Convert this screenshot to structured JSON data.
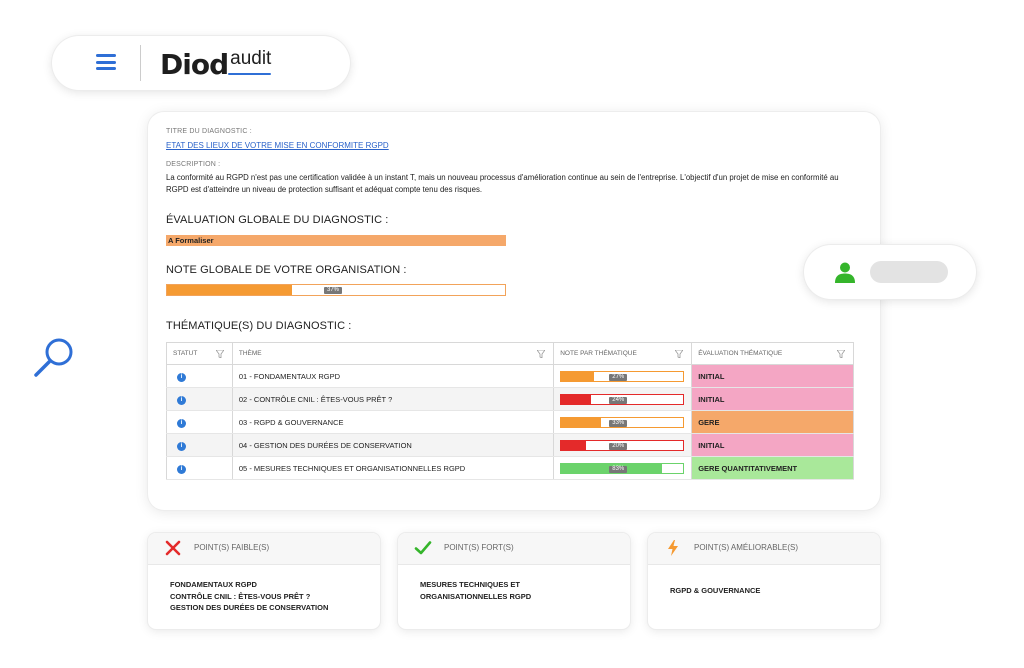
{
  "brand": {
    "name_main": "Diod",
    "name_sub": "audit"
  },
  "diagnostic": {
    "title_label": "TITRE DU DIAGNOSTIC :",
    "title": "ETAT DES LIEUX DE VOTRE MISE EN CONFORMITE RGPD",
    "description_label": "DESCRIPTION :",
    "description": "La conformité au RGPD n'est pas une certification validée à un instant T, mais un nouveau processus d'amélioration continue au sein de l'entreprise. L'objectif d'un projet de mise en conformité au RGPD est d'atteindre un niveau de protection suffisant et adéquat compte tenu des risques.",
    "global_eval_title": "ÉVALUATION GLOBALE DU DIAGNOSTIC :",
    "global_eval_value": "A Formaliser",
    "global_eval_color": "#f5a86a",
    "global_note_title": "NOTE GLOBALE DE VOTRE ORGANISATION :",
    "global_note_percent": 37,
    "global_note_label": "37%",
    "themes_title": "THÉMATIQUE(S) DU DIAGNOSTIC :"
  },
  "table": {
    "headers": [
      "STATUT",
      "THÈME",
      "NOTE PAR THÉMATIQUE",
      "ÉVALUATION THÉMATIQUE"
    ],
    "rows": [
      {
        "status_icon": "info-icon",
        "theme": "01 - FONDAMENTAUX RGPD",
        "percent": 27,
        "percent_label": "27%",
        "bar_color": "#f59a32",
        "evaluation": "INITIAL",
        "eval_color": "#f4a6c4"
      },
      {
        "status_icon": "info-icon",
        "theme": "02 - CONTRÔLE CNIL : ÊTES-VOUS PRÊT ?",
        "percent": 24,
        "percent_label": "24%",
        "bar_color": "#e42a2a",
        "evaluation": "INITIAL",
        "eval_color": "#f4a6c4"
      },
      {
        "status_icon": "info-icon",
        "theme": "03 - RGPD & GOUVERNANCE",
        "percent": 33,
        "percent_label": "33%",
        "bar_color": "#f59a32",
        "evaluation": "GERE",
        "eval_color": "#f5a86a"
      },
      {
        "status_icon": "info-icon",
        "theme": "04 - GESTION DES DURÉES DE CONSERVATION",
        "percent": 20,
        "percent_label": "20%",
        "bar_color": "#e42a2a",
        "evaluation": "INITIAL",
        "eval_color": "#f4a6c4"
      },
      {
        "status_icon": "info-icon",
        "theme": "05 - MESURES TECHNIQUES ET ORGANISATIONNELLES RGPD",
        "percent": 83,
        "percent_label": "83%",
        "bar_color": "#6bd36b",
        "evaluation": "GERE QUANTITATIVEMENT",
        "eval_color": "#a9e89a"
      }
    ]
  },
  "points": {
    "weak": {
      "title": "POINT(S) FAIBLE(S)",
      "icon": "x-icon",
      "color": "#e42a2a",
      "items": [
        "FONDAMENTAUX RGPD",
        "CONTRÔLE CNIL : ÊTES-VOUS PRÊT ?",
        "GESTION DES DURÉES DE CONSERVATION"
      ]
    },
    "strong": {
      "title": "POINT(S) FORT(S)",
      "icon": "check-icon",
      "color": "#35b52b",
      "items": [
        "MESURES TECHNIQUES ET",
        "ORGANISATIONNELLES RGPD"
      ]
    },
    "improvable": {
      "title": "POINT(S) AMÉLIORABLE(S)",
      "icon": "lightning-icon",
      "color": "#f59a32",
      "items": [
        "RGPD & GOUVERNANCE"
      ]
    }
  },
  "colors": {
    "accent": "#2f6fd6",
    "user": "#35b52b"
  }
}
